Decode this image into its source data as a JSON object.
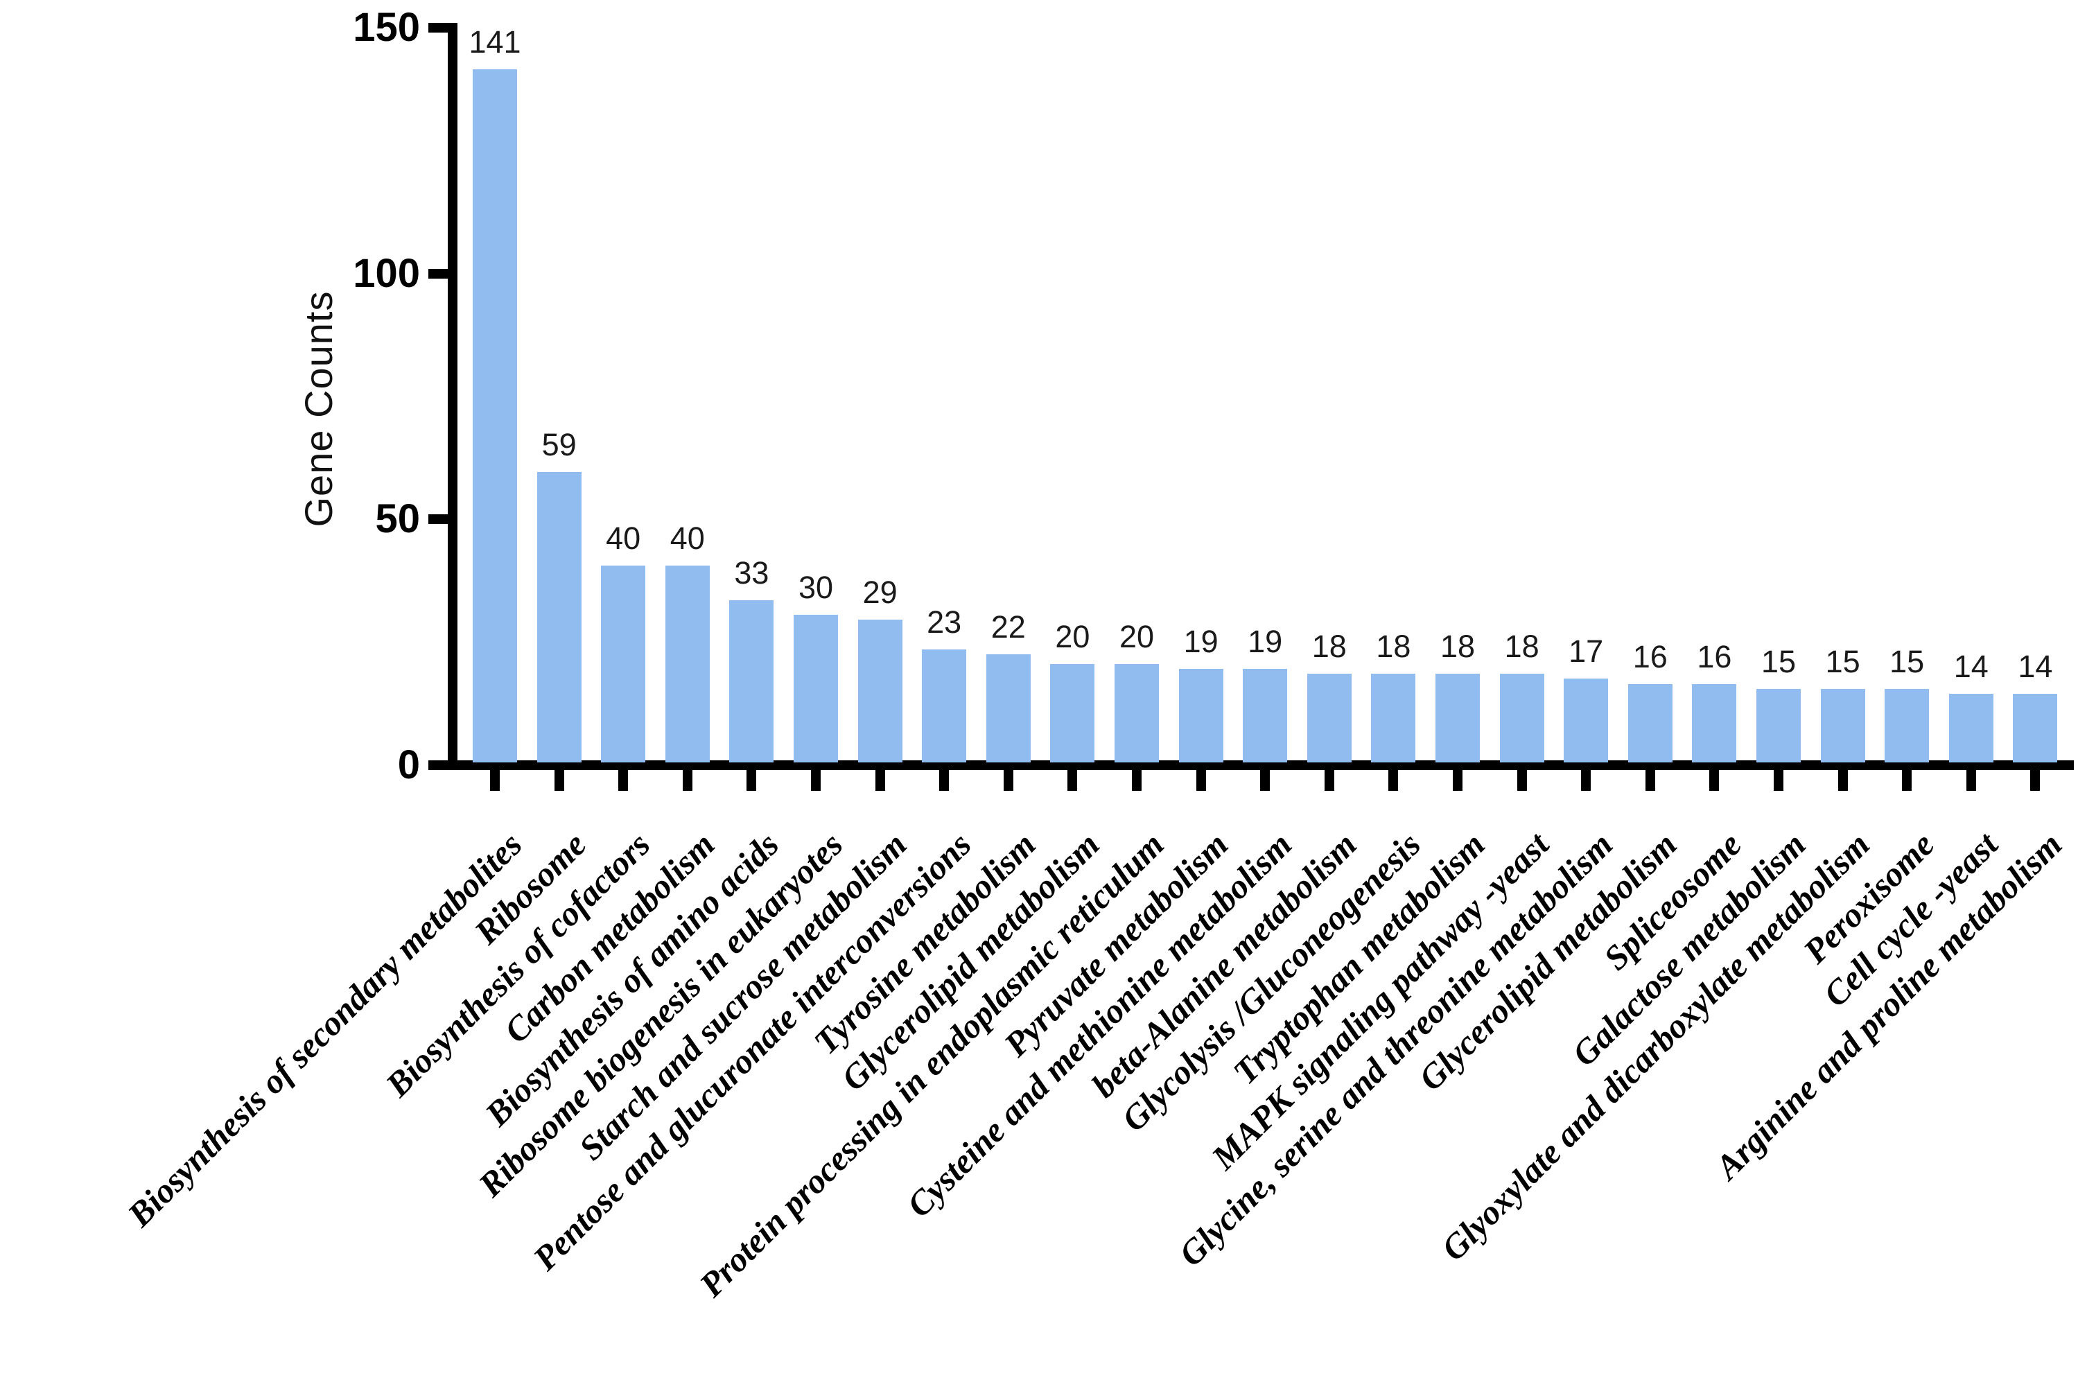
{
  "chart_data": {
    "type": "bar",
    "title": "",
    "xlabel": "",
    "ylabel": "Gene Counts",
    "ylim": [
      0,
      150
    ],
    "yticks": [
      0,
      50,
      100,
      150
    ],
    "grid": false,
    "legend": null,
    "bar_color": "#90bcf0",
    "axis_color": "#000000",
    "categories": [
      "Biosynthesis of secondary metabolites",
      "Ribosome",
      "Biosynthesis of cofactors",
      "Carbon metabolism",
      "Biosynthesis of amino acids",
      "Ribosome biogenesis in eukaryotes",
      "Starch and sucrose metabolism",
      "Pentose and glucuronate interconversions",
      "Tyrosine metabolism",
      "Glycerolipid metabolism",
      "Protein processing in endoplasmic reticulum",
      "Pyruvate metabolism",
      "Cysteine and methionine metabolism",
      "beta-Alanine metabolism",
      "Glycolysis /Gluconeogenesis",
      "Tryptophan metabolism",
      "MAPK signaling pathway -yeast",
      "Glycine, serine and threonine metabolism",
      "Glycerolipid metabolism",
      "Spliceosome",
      "Galactose metabolism",
      "Glyoxylate and dicarboxylate metabolism",
      "Peroxisome",
      "Cell cycle -yeast",
      "Arginine and proline metabolism"
    ],
    "values": [
      141,
      59,
      40,
      40,
      33,
      30,
      29,
      23,
      22,
      20,
      20,
      19,
      19,
      18,
      18,
      18,
      18,
      17,
      16,
      16,
      15,
      15,
      15,
      14,
      14
    ]
  }
}
